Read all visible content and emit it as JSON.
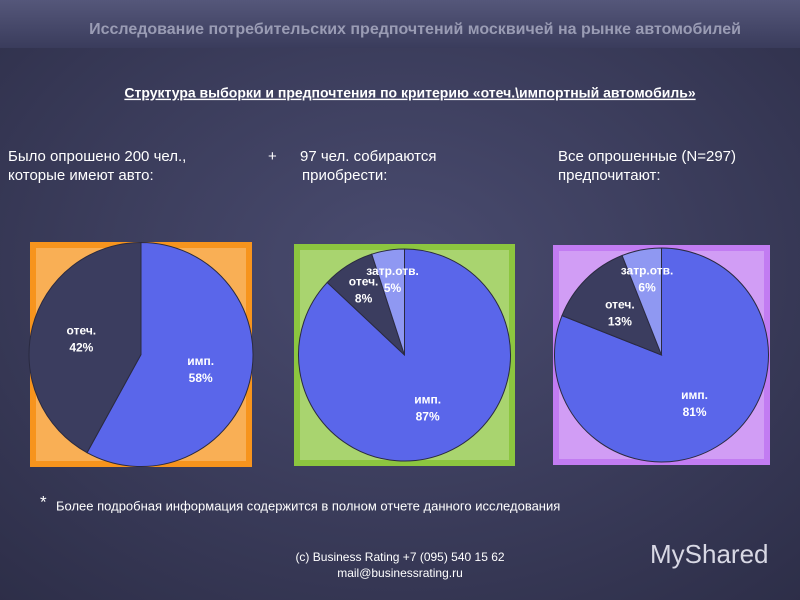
{
  "slide": {
    "header": "Исследование потребительских предпочтений москвичей на рынке автомобилей",
    "subtitle": "Структура выборки и предпочтения по критерию «отеч.\\импортный автомобиль»",
    "columns": [
      [
        "Было опрошено 200 чел.,",
        "которые имеют авто:"
      ],
      [
        "97 чел. собираются",
        "приобрести:"
      ],
      [
        "Все опрошенные (N=297)",
        "предпочитают:"
      ]
    ],
    "plus": "+",
    "footnote_mark": "*",
    "footnote": "Более подробная информация содержится в полном отчете данного исследования",
    "footer": [
      "(c) Business Rating +7 (095) 540 15 62",
      "mail@businessrating.ru"
    ],
    "watermark": "MyShared"
  },
  "chart_data": [
    {
      "type": "pie",
      "categories": [
        "имп.",
        "отеч."
      ],
      "values": [
        58,
        42
      ],
      "value_labels": [
        "58%",
        "42%"
      ],
      "colors": [
        "#5a66ea",
        "#3b3d5f"
      ],
      "background": "#f7941d"
    },
    {
      "type": "pie",
      "categories": [
        "имп.",
        "отеч.",
        "затр.отв."
      ],
      "values": [
        87,
        8,
        5
      ],
      "value_labels": [
        "87%",
        "8%",
        "5%"
      ],
      "colors": [
        "#5a66ea",
        "#3b3d5f",
        "#8f98f2"
      ],
      "background": "#8cc63f"
    },
    {
      "type": "pie",
      "categories": [
        "имп.",
        "отеч.",
        "затр.отв."
      ],
      "values": [
        81,
        13,
        6
      ],
      "value_labels": [
        "81%",
        "13%",
        "6%"
      ],
      "colors": [
        "#5a66ea",
        "#3b3d5f",
        "#8f98f2"
      ],
      "background": "#c27cf2"
    }
  ]
}
